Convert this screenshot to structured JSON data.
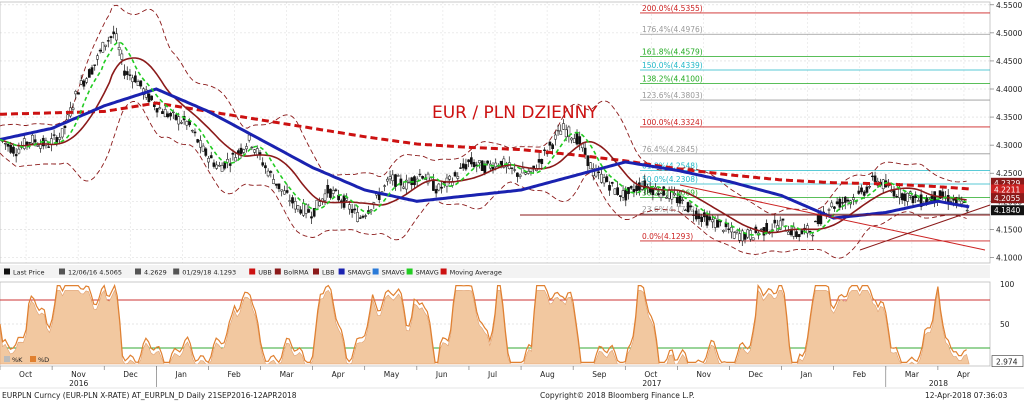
{
  "chart_title": "EUR / PLN DZIENNY",
  "colors": {
    "title": "#cc1111",
    "price": "#111111",
    "sma_fast": "#22cc22",
    "sma_mid": "#8b1a1a",
    "sma_blue": "#1a22b0",
    "sma_long": "#cc1111",
    "bollinger": "#8b1a1a",
    "fib_line": "#8b1a1a",
    "fib_cyan": "#22b8c8",
    "fib_green": "#22aa22",
    "fib_gray": "#999999",
    "fib_red": "#cc2222",
    "oscillator": "#e08030",
    "osc_fill": "#f2c8a0",
    "osc_band": "#cc3333",
    "osc_mid": "#33aa33"
  },
  "legend": {
    "items": [
      {
        "icon": "black-square",
        "label": "Last Price"
      },
      {
        "icon": "high-marker",
        "label": "12/06/16 4.5065"
      },
      {
        "icon": "dot-marker",
        "label": "4.2629"
      },
      {
        "icon": "low-marker",
        "label": "01/29/18 4.1293"
      },
      {
        "icon": "bracket-red",
        "label": "UBB"
      },
      {
        "icon": "square-darkred",
        "label": "BolRMA"
      },
      {
        "icon": "bracket-darkred",
        "label": "LBB"
      },
      {
        "icon": "square-blue",
        "label": "SMAVG"
      },
      {
        "icon": "square-steelblue",
        "label": "SMAVG"
      },
      {
        "icon": "check-green",
        "label": "SMAVG"
      },
      {
        "icon": "check-red",
        "label": "Moving Average"
      }
    ]
  },
  "osc_legend": {
    "items": [
      {
        "icon": "gray-square",
        "label": "%K"
      },
      {
        "icon": "orange-square",
        "label": "%D"
      }
    ]
  },
  "fib_labels": [
    {
      "text": "200.0%(4.5355)",
      "value": 4.5355,
      "style": "line"
    },
    {
      "text": "176.4%(4.4976)",
      "value": 4.4976,
      "style": "gray"
    },
    {
      "text": "161.8%(4.4579)",
      "value": 4.4579,
      "style": "green"
    },
    {
      "text": "150.0%(4.4339)",
      "value": 4.4339,
      "style": "cyan"
    },
    {
      "text": "138.2%(4.4100)",
      "value": 4.41,
      "style": "green"
    },
    {
      "text": "123.6%(4.3803)",
      "value": 4.3803,
      "style": "gray"
    },
    {
      "text": "100.0%(4.3324)",
      "value": 4.3324,
      "style": "red"
    },
    {
      "text": "76.4%(4.2845)",
      "value": 4.2845,
      "style": "gray"
    },
    {
      "text": "61.8%(4.2548)",
      "value": 4.2548,
      "style": "cyan"
    },
    {
      "text": "50.0%(4.2308)",
      "value": 4.2308,
      "style": "cyan"
    },
    {
      "text": "38.2%(4.2069)",
      "value": 4.2069,
      "style": "green"
    },
    {
      "text": "23.6%(4.1772)",
      "value": 4.1772,
      "style": "gray"
    },
    {
      "text": "0.0%(4.1293)",
      "value": 4.1293,
      "style": "red"
    }
  ],
  "price_tags": [
    {
      "text": "4.2329",
      "value": 4.2329,
      "color": "#8b1a1a"
    },
    {
      "text": "4.2211",
      "value": 4.2211,
      "color": "#cc2222"
    },
    {
      "text": "4.2055",
      "value": 4.2055,
      "color": "#8b1a1a"
    },
    {
      "text": "4.1840",
      "value": 4.184,
      "color": "#111111"
    }
  ],
  "osc_tag": {
    "text": "2.974",
    "value": 2.974
  },
  "footer": {
    "left": "EURPLN Curncy (EUR-PLN X-RATE) AT_EURPLN_D  Daily 21SEP2016-12APR2018",
    "center": "Copyright© 2018 Bloomberg Finance L.P.",
    "right": "12-Apr-2018 07:36:03"
  },
  "chart_data": {
    "type": "line",
    "title": "EUR / PLN DZIENNY",
    "y_axis": {
      "ticks": [
        "4.5500",
        "4.5000",
        "4.4500",
        "4.4000",
        "4.3500",
        "4.3000",
        "4.2500",
        "4.2000",
        "4.1500",
        "4.1000"
      ],
      "range": [
        4.09,
        4.555
      ]
    },
    "x_axis": {
      "months": [
        "Oct",
        "Nov",
        "Dec",
        "Jan",
        "Feb",
        "Mar",
        "Apr",
        "May",
        "Jun",
        "Jul",
        "Aug",
        "Sep",
        "Oct",
        "Nov",
        "Dec",
        "Jan",
        "Feb",
        "Mar",
        "Apr"
      ],
      "years": [
        "2016",
        "2017",
        "2018"
      ],
      "range": [
        0,
        19
      ]
    },
    "osc_axis": {
      "ticks": [
        "100",
        "50",
        "0"
      ],
      "range": [
        0,
        100
      ]
    },
    "series": [
      {
        "name": "Last Price",
        "x": [
          0,
          0.3,
          0.6,
          0.9,
          1.2,
          1.5,
          1.8,
          2.0,
          2.2,
          2.4,
          2.6,
          2.8,
          3.0,
          3.3,
          3.6,
          3.9,
          4.2,
          4.5,
          4.8,
          5.1,
          5.4,
          5.7,
          6.0,
          6.3,
          6.6,
          6.9,
          7.2,
          7.5,
          7.8,
          8.1,
          8.4,
          8.7,
          9.0,
          9.3,
          9.6,
          9.9,
          10.2,
          10.5,
          10.8,
          11.1,
          11.4,
          11.6,
          11.8,
          12.0,
          12.3,
          12.6,
          12.9,
          13.2,
          13.5,
          13.8,
          14.1,
          14.4,
          14.7,
          15.0,
          15.3,
          15.6,
          15.9,
          16.2,
          16.5,
          16.8,
          17.1,
          17.4,
          17.7,
          18.0,
          18.3,
          18.6
        ],
        "values": [
          4.31,
          4.29,
          4.31,
          4.3,
          4.32,
          4.4,
          4.44,
          4.48,
          4.5,
          4.43,
          4.42,
          4.39,
          4.37,
          4.35,
          4.34,
          4.29,
          4.26,
          4.28,
          4.31,
          4.26,
          4.22,
          4.19,
          4.18,
          4.22,
          4.2,
          4.17,
          4.2,
          4.24,
          4.23,
          4.25,
          4.22,
          4.24,
          4.27,
          4.26,
          4.27,
          4.25,
          4.25,
          4.29,
          4.33,
          4.31,
          4.25,
          4.24,
          4.22,
          4.21,
          4.23,
          4.22,
          4.21,
          4.19,
          4.17,
          4.16,
          4.14,
          4.14,
          4.15,
          4.16,
          4.14,
          4.15,
          4.19,
          4.2,
          4.21,
          4.24,
          4.22,
          4.21,
          4.2,
          4.21,
          4.2,
          4.19
        ]
      },
      {
        "name": "SMAVG",
        "x": [
          0,
          1,
          2,
          3,
          4,
          5,
          6,
          7,
          8,
          9,
          10,
          11,
          12,
          13,
          14,
          15,
          16,
          17,
          18,
          18.6
        ],
        "values": [
          4.31,
          4.33,
          4.37,
          4.4,
          4.36,
          4.31,
          4.26,
          4.22,
          4.2,
          4.21,
          4.22,
          4.245,
          4.27,
          4.255,
          4.235,
          4.21,
          4.17,
          4.18,
          4.2,
          4.19
        ]
      },
      {
        "name": "Moving Average",
        "x": [
          0,
          2,
          3,
          4,
          5,
          6,
          7,
          8,
          9,
          10,
          11,
          12,
          13,
          14,
          15,
          16,
          17,
          18,
          18.6
        ],
        "values": [
          4.355,
          4.36,
          4.375,
          4.36,
          4.345,
          4.33,
          4.315,
          4.302,
          4.296,
          4.292,
          4.283,
          4.272,
          4.258,
          4.247,
          4.238,
          4.233,
          4.231,
          4.226,
          4.222
        ]
      }
    ]
  }
}
